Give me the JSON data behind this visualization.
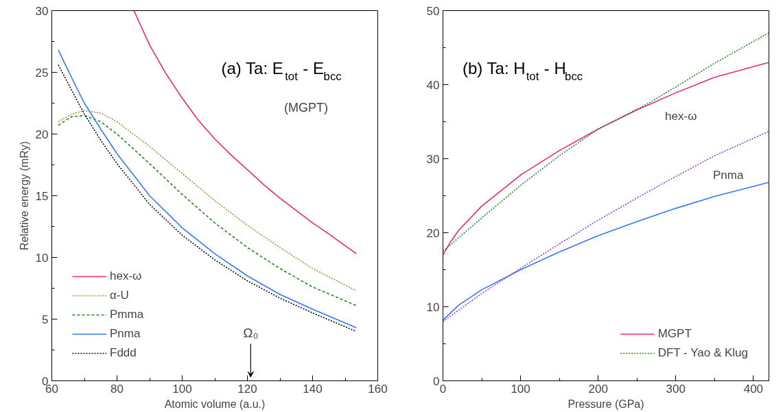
{
  "chart_data": [
    {
      "type": "line",
      "title": "(a) Ta: E$_{tot}$- E$_{bcc}$",
      "subtitle": "(MGPT)",
      "xlabel": "Atomic volume (a.u.)",
      "ylabel": "Relative energy (mRy)",
      "xlim": [
        60,
        160
      ],
      "ylim": [
        0,
        30
      ],
      "xticks": [
        60,
        80,
        100,
        120,
        140,
        160
      ],
      "yticks": [
        0,
        5,
        10,
        15,
        20,
        25,
        30
      ],
      "grid": false,
      "legend": "bottom left",
      "annotations": [
        "Ω₀"
      ],
      "series": [
        {
          "name": "hex-ω",
          "color": "#f0266e",
          "line_style": "solid",
          "x": [
            85.2,
            90,
            95,
            100,
            105,
            110,
            115,
            120,
            125,
            130,
            135,
            140,
            145,
            153.4
          ],
          "values": [
            30,
            27.2,
            24.9,
            22.9,
            21.1,
            19.6,
            18.3,
            17.1,
            15.9,
            14.8,
            13.8,
            12.8,
            11.9,
            10.3
          ]
        },
        {
          "name": "α-U",
          "color": "#a08a3c",
          "line_style": "dotted",
          "x": [
            62,
            66,
            70,
            75,
            80,
            90,
            100,
            110,
            120,
            130,
            140,
            153.4
          ],
          "values": [
            21.0,
            21.6,
            21.9,
            21.7,
            21.0,
            19.0,
            16.8,
            14.6,
            12.6,
            10.8,
            9.1,
            7.3
          ]
        },
        {
          "name": "Pmma",
          "color": "#1a8a1a",
          "line_style": "dashed",
          "x": [
            62,
            66,
            70,
            75,
            80,
            90,
            100,
            110,
            120,
            130,
            140,
            153.4
          ],
          "values": [
            20.7,
            21.4,
            21.5,
            21.0,
            20.0,
            17.6,
            15.1,
            12.8,
            10.8,
            9.1,
            7.6,
            6.1
          ]
        },
        {
          "name": "Pnma",
          "color": "#3377ff",
          "line_style": "solid",
          "x": [
            62,
            66,
            70,
            75,
            80,
            90,
            100,
            110,
            120,
            130,
            140,
            153.4
          ],
          "values": [
            26.8,
            24.6,
            22.5,
            20.4,
            18.4,
            15.0,
            12.4,
            10.3,
            8.5,
            7.0,
            5.8,
            4.3
          ]
        },
        {
          "name": "Fddd",
          "color": "#000000",
          "line_style": "dotted",
          "x": [
            62,
            66,
            70,
            75,
            80,
            90,
            100,
            110,
            120,
            130,
            140,
            153.4
          ],
          "values": [
            25.6,
            23.6,
            21.6,
            19.5,
            17.6,
            14.3,
            11.8,
            9.8,
            8.1,
            6.7,
            5.5,
            4.0
          ]
        }
      ]
    },
    {
      "type": "line",
      "title": "(b) Ta: H$_{tot}$- H$_{bcc}$",
      "xlabel": "Pressure (GPa)",
      "xlim": [
        0,
        420
      ],
      "ylim": [
        0,
        50
      ],
      "xticks": [
        0,
        100,
        200,
        300,
        400
      ],
      "yticks": [
        0,
        10,
        20,
        30,
        40,
        50
      ],
      "grid": false,
      "legend": "bottom right",
      "annotations": [
        "hex-ω",
        "Pnma"
      ],
      "series": [
        {
          "name": "MGPT",
          "color": "#f0266e",
          "line_style": "solid",
          "x": [
            0,
            10,
            20,
            50,
            100,
            150,
            200,
            250,
            300,
            350,
            420
          ],
          "values": [
            17.0,
            18.8,
            20.3,
            23.6,
            27.8,
            31.1,
            34.0,
            36.6,
            38.9,
            41.0,
            43.0
          ]
        },
        {
          "color": "#3377ff",
          "line_style": "solid",
          "x": [
            0,
            20,
            50,
            100,
            150,
            200,
            250,
            300,
            350,
            420
          ],
          "values": [
            8.2,
            10.2,
            12.3,
            15.0,
            17.4,
            19.6,
            21.5,
            23.3,
            24.9,
            26.8
          ]
        },
        {
          "name": "DFT - Yao & Klug",
          "color": "#1a8a1a",
          "line_style": "dotted",
          "x": [
            0,
            50,
            100,
            150,
            200,
            265,
            300,
            350,
            420
          ],
          "values": [
            17.5,
            22.0,
            26.4,
            30.4,
            34.0,
            37.5,
            39.7,
            42.9,
            47.0
          ]
        },
        {
          "color": "#8a3cf0",
          "line_style": "dotted",
          "x": [
            0,
            50,
            100,
            150,
            200,
            250,
            300,
            350,
            420
          ],
          "values": [
            8.0,
            11.8,
            15.2,
            18.5,
            21.7,
            24.7,
            27.6,
            30.4,
            33.7
          ]
        }
      ]
    }
  ]
}
